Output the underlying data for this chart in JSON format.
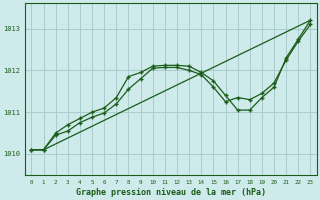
{
  "title": "Graphe pression niveau de la mer (hPa)",
  "background_color": "#ceeaea",
  "grid_color": "#a8cccc",
  "line_color": "#1a5c1a",
  "xlim": [
    -0.5,
    23.5
  ],
  "ylim": [
    1009.5,
    1013.6
  ],
  "yticks": [
    1010,
    1011,
    1012,
    1013
  ],
  "xticks": [
    0,
    1,
    2,
    3,
    4,
    5,
    6,
    7,
    8,
    9,
    10,
    11,
    12,
    13,
    14,
    15,
    16,
    17,
    18,
    19,
    20,
    21,
    22,
    23
  ],
  "line1_x": [
    0,
    1,
    2,
    3,
    4,
    5,
    6,
    7,
    8,
    9,
    10,
    11,
    12,
    13,
    14,
    15,
    16,
    17,
    18,
    19,
    20,
    21,
    22,
    23
  ],
  "line1_y": [
    1010.1,
    1010.1,
    1010.5,
    1010.7,
    1010.85,
    1011.0,
    1011.1,
    1011.35,
    1011.85,
    1011.95,
    1012.1,
    1012.12,
    1012.12,
    1012.1,
    1011.95,
    1011.75,
    1011.4,
    1011.05,
    1011.05,
    1011.35,
    1011.6,
    1012.3,
    1012.75,
    1013.2
  ],
  "line2_x": [
    0,
    1,
    2,
    3,
    4,
    5,
    6,
    7,
    8,
    9,
    10,
    11,
    12,
    13,
    14,
    15,
    16,
    17,
    18,
    19,
    20,
    21,
    22,
    23
  ],
  "line2_y": [
    1010.1,
    1010.1,
    1010.45,
    1010.55,
    1010.75,
    1010.88,
    1010.98,
    1011.2,
    1011.55,
    1011.8,
    1012.05,
    1012.07,
    1012.07,
    1012.0,
    1011.9,
    1011.6,
    1011.25,
    1011.35,
    1011.3,
    1011.45,
    1011.7,
    1012.25,
    1012.7,
    1013.1
  ],
  "line3_x": [
    0,
    1,
    23
  ],
  "line3_y": [
    1010.1,
    1010.1,
    1013.2
  ]
}
